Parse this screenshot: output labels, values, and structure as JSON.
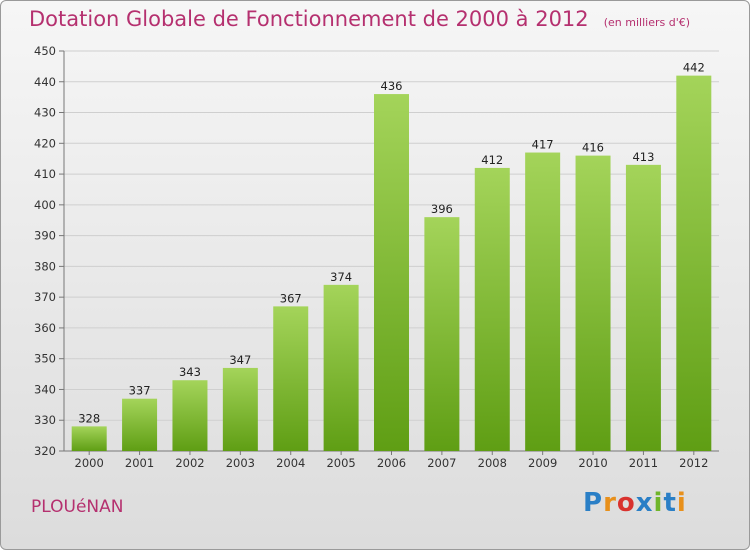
{
  "header": {
    "title": "Dotation Globale de Fonctionnement de 2000 à 2012",
    "subtitle": "(en milliers d'€)"
  },
  "footer": {
    "commune": "PLOUéNAN",
    "logo_text": "Proxiti",
    "logo_colors": [
      "#2a7fc6",
      "#e8901b",
      "#d9322e",
      "#2a7fc6",
      "#6fb52a",
      "#2a7fc6",
      "#e8901b"
    ]
  },
  "colors": {
    "bar_top": "#a4d45a",
    "bar_bottom": "#5f9e14",
    "grid": "#cfcfcf"
  },
  "chart_data": {
    "type": "bar",
    "title": "Dotation Globale de Fonctionnement de 2000 à 2012",
    "subtitle": "(en milliers d'€)",
    "categories": [
      "2000",
      "2001",
      "2002",
      "2003",
      "2004",
      "2005",
      "2006",
      "2007",
      "2008",
      "2009",
      "2010",
      "2011",
      "2012"
    ],
    "values": [
      328,
      337,
      343,
      347,
      367,
      374,
      436,
      396,
      412,
      417,
      416,
      413,
      442
    ],
    "ylim": [
      320,
      450
    ],
    "yticks": [
      320,
      330,
      340,
      350,
      360,
      370,
      380,
      390,
      400,
      410,
      420,
      430,
      440,
      450
    ],
    "grid": true,
    "xlabel": "",
    "ylabel": ""
  }
}
